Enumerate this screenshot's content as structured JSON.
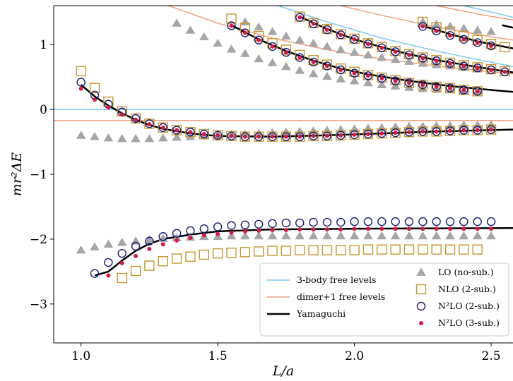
{
  "chart_data": {
    "type": "scatter",
    "xlabel": "L/a",
    "ylabel": "mr²ΔE",
    "xlim": [
      0.9,
      2.58
    ],
    "ylim": [
      -3.6,
      1.6
    ],
    "xticks": [
      1.0,
      1.5,
      2.0,
      2.5
    ],
    "xtick_labels": [
      "1.0",
      "1.5",
      "2.0",
      "2.5"
    ],
    "yticks": [
      -3,
      -2,
      -1,
      0,
      1
    ],
    "ytick_labels": [
      "−3",
      "−2",
      "−1",
      "0",
      "1"
    ],
    "colors": {
      "lo": "#a6a6a6",
      "nlo": "#c8962d",
      "n2lo2": "#1a1a73",
      "n2lo3": "#d01c45",
      "free3": "#7ec8ef",
      "dimer": "#f0a080",
      "yamaguchi": "#000000"
    },
    "legend_left": [
      {
        "label": "3-body free levels",
        "key": "free3"
      },
      {
        "label": "dimer+1 free levels",
        "key": "dimer"
      },
      {
        "label": "Yamaguchi",
        "key": "yamaguchi"
      }
    ],
    "legend_right": [
      {
        "label": "LO (no-sub.)",
        "key": "lo"
      },
      {
        "label": "NLO (2-sub.)",
        "key": "nlo"
      },
      {
        "label": "N²LO (2-sub.)",
        "key": "n2lo2"
      },
      {
        "label": "N²LO (3-sub.)",
        "key": "n2lo3"
      }
    ],
    "series": [
      {
        "key": "lo",
        "marker": "triangle",
        "start": 1.0,
        "step": 0.05,
        "values": [
          -2.17,
          -2.12,
          -2.08,
          -2.05,
          -2.03,
          -2.01,
          -1.99,
          -1.98,
          -1.97,
          -1.96,
          -1.96,
          -1.95,
          -1.95,
          -1.95,
          -1.95,
          -1.95,
          -1.95,
          -1.95,
          -1.95,
          -1.95,
          -1.95,
          -1.95,
          -1.95,
          -1.95,
          -1.95,
          -1.95,
          -1.95,
          -1.95,
          -1.95,
          -1.95,
          -1.95
        ]
      },
      {
        "key": "lo",
        "marker": "triangle",
        "start": 1.0,
        "step": 0.05,
        "values": [
          -0.4,
          -0.42,
          -0.44,
          -0.45,
          -0.45,
          -0.45,
          -0.44,
          -0.43,
          -0.42,
          -0.41,
          -0.4,
          -0.39,
          -0.38,
          -0.37,
          -0.36,
          -0.35,
          -0.34,
          -0.33,
          -0.32,
          -0.31,
          -0.3,
          -0.29,
          -0.28,
          -0.27,
          -0.26,
          -0.26,
          -0.25,
          -0.25,
          -0.24,
          -0.24,
          -0.24
        ]
      },
      {
        "key": "lo",
        "marker": "triangle",
        "start": 1.35,
        "step": 0.05,
        "values": [
          1.33,
          1.22,
          1.12,
          1.02,
          0.93,
          0.86,
          0.78,
          0.72,
          0.66,
          0.6,
          0.55,
          0.51,
          0.47,
          0.44,
          0.41,
          0.38,
          0.36,
          0.34,
          0.32,
          0.31,
          0.3,
          0.29,
          0.28
        ]
      },
      {
        "key": "lo",
        "marker": "triangle",
        "start": 1.6,
        "step": 0.05,
        "values": [
          1.35,
          1.27,
          1.2,
          1.13,
          1.07,
          1.02,
          0.97,
          0.92,
          0.88,
          0.84,
          0.8,
          0.77,
          0.74,
          0.71,
          0.69,
          0.67,
          0.65,
          0.63
        ]
      },
      {
        "key": "lo",
        "marker": "triangle",
        "start": 2.25,
        "step": 0.05,
        "values": [
          1.35,
          1.31,
          1.28,
          1.25,
          1.22,
          1.2
        ]
      },
      {
        "key": "nlo",
        "marker": "square",
        "start": 1.0,
        "step": 0.05,
        "values": [
          0.59,
          0.33,
          0.12,
          -0.03,
          -0.14,
          -0.22,
          -0.28,
          -0.32,
          -0.35,
          -0.38,
          -0.4,
          -0.41,
          -0.42,
          -0.42,
          -0.42,
          -0.42,
          -0.42,
          -0.41,
          -0.41,
          -0.4,
          -0.39,
          -0.38,
          -0.37,
          -0.36,
          -0.35,
          -0.34,
          -0.34,
          -0.33,
          -0.32,
          -0.32,
          -0.31
        ]
      },
      {
        "key": "nlo",
        "marker": "square",
        "start": 1.15,
        "step": 0.05,
        "values": [
          -2.6,
          -2.49,
          -2.41,
          -2.34,
          -2.3,
          -2.27,
          -2.24,
          -2.22,
          -2.21,
          -2.2,
          -2.19,
          -2.18,
          -2.18,
          -2.17,
          -2.17,
          -2.17,
          -2.17,
          -2.17,
          -2.16,
          -2.16,
          -2.16,
          -2.16,
          -2.16,
          -2.16,
          -2.16,
          -2.16,
          -2.16
        ]
      },
      {
        "key": "nlo",
        "marker": "square",
        "start": 1.55,
        "step": 0.05,
        "values": [
          1.4,
          1.26,
          1.13,
          1.02,
          0.92,
          0.84,
          0.76,
          0.69,
          0.63,
          0.58,
          0.53,
          0.49,
          0.45,
          0.41,
          0.38,
          0.35,
          0.33,
          0.3,
          0.28
        ]
      },
      {
        "key": "nlo",
        "marker": "square",
        "start": 1.8,
        "step": 0.05,
        "values": [
          1.43,
          1.33,
          1.24,
          1.16,
          1.09,
          1.02,
          0.96,
          0.9,
          0.85,
          0.8,
          0.76,
          0.72,
          0.68,
          0.65,
          0.62,
          0.59
        ]
      },
      {
        "key": "nlo",
        "marker": "square",
        "start": 2.25,
        "step": 0.05,
        "values": [
          1.35,
          1.27,
          1.2,
          1.13,
          1.07,
          1.01,
          0.96
        ]
      },
      {
        "key": "n2lo2",
        "marker": "circle",
        "start": 1.05,
        "step": 0.05,
        "values": [
          -2.53,
          -2.36,
          -2.22,
          -2.11,
          -2.03,
          -1.96,
          -1.91,
          -1.87,
          -1.84,
          -1.81,
          -1.79,
          -1.78,
          -1.77,
          -1.76,
          -1.75,
          -1.75,
          -1.74,
          -1.74,
          -1.74,
          -1.73,
          -1.73,
          -1.73,
          -1.73,
          -1.73,
          -1.73,
          -1.73,
          -1.73,
          -1.73,
          -1.73,
          -1.73
        ]
      },
      {
        "key": "n2lo2",
        "marker": "circle",
        "start": 1.0,
        "step": 0.05,
        "values": [
          0.42,
          0.22,
          0.08,
          -0.04,
          -0.14,
          -0.22,
          -0.28,
          -0.32,
          -0.35,
          -0.38,
          -0.4,
          -0.41,
          -0.42,
          -0.42,
          -0.42,
          -0.42,
          -0.42,
          -0.41,
          -0.41,
          -0.4,
          -0.39,
          -0.38,
          -0.37,
          -0.36,
          -0.35,
          -0.34,
          -0.34,
          -0.33,
          -0.32,
          -0.32,
          -0.31
        ]
      },
      {
        "key": "n2lo2",
        "marker": "circle",
        "start": 1.55,
        "step": 0.05,
        "values": [
          1.29,
          1.18,
          1.07,
          0.97,
          0.88,
          0.8,
          0.73,
          0.67,
          0.61,
          0.56,
          0.52,
          0.48,
          0.44,
          0.41,
          0.38,
          0.35,
          0.33,
          0.3,
          0.28
        ]
      },
      {
        "key": "n2lo2",
        "marker": "circle",
        "start": 1.8,
        "step": 0.05,
        "values": [
          1.42,
          1.32,
          1.23,
          1.15,
          1.08,
          1.01,
          0.95,
          0.89,
          0.84,
          0.79,
          0.75,
          0.71,
          0.67,
          0.64,
          0.61,
          0.58
        ]
      },
      {
        "key": "n2lo2",
        "marker": "circle",
        "start": 2.25,
        "step": 0.05,
        "values": [
          1.28,
          1.21,
          1.14,
          1.08,
          1.03,
          0.98
        ]
      },
      {
        "key": "n2lo3",
        "marker": "dot",
        "start": 1.0,
        "step": 0.05,
        "values": [
          0.32,
          0.15,
          0.03,
          -0.08,
          -0.16,
          -0.23,
          -0.28,
          -0.32,
          -0.35,
          -0.38,
          -0.4,
          -0.41,
          -0.42,
          -0.42,
          -0.42,
          -0.42,
          -0.42,
          -0.41,
          -0.41,
          -0.4,
          -0.39,
          -0.38,
          -0.37,
          -0.36,
          -0.35,
          -0.34,
          -0.34,
          -0.33,
          -0.32,
          -0.32,
          -0.31
        ]
      },
      {
        "key": "n2lo3",
        "marker": "dot",
        "start": 1.1,
        "step": 0.05,
        "values": [
          -2.56,
          -2.37,
          -2.26,
          -2.15,
          -2.08,
          -2.02,
          -1.98,
          -1.94,
          -1.92,
          -1.9,
          -1.88,
          -1.87,
          -1.86,
          -1.86,
          -1.85,
          -1.85,
          -1.85,
          -1.85,
          -1.84,
          -1.84,
          -1.84,
          -1.84,
          -1.84,
          -1.84,
          -1.84,
          -1.84,
          -1.84,
          -1.84,
          -1.84
        ]
      },
      {
        "key": "n2lo3",
        "marker": "dot",
        "start": 1.55,
        "step": 0.05,
        "values": [
          1.29,
          1.18,
          1.07,
          0.97,
          0.88,
          0.8,
          0.73,
          0.67,
          0.61,
          0.56,
          0.52,
          0.48,
          0.44,
          0.41,
          0.38,
          0.35,
          0.33,
          0.3,
          0.28
        ]
      },
      {
        "key": "n2lo3",
        "marker": "dot",
        "start": 1.8,
        "step": 0.05,
        "values": [
          1.42,
          1.32,
          1.23,
          1.15,
          1.08,
          1.01,
          0.95,
          0.89,
          0.84,
          0.79,
          0.75,
          0.71,
          0.67,
          0.64,
          0.61,
          0.58
        ]
      },
      {
        "key": "n2lo3",
        "marker": "dot",
        "start": 2.25,
        "step": 0.05,
        "values": [
          1.28,
          1.21,
          1.14,
          1.08,
          1.03,
          0.98
        ]
      }
    ],
    "curves": [
      {
        "key": "free3",
        "points": [
          [
            0.9,
            0.0
          ],
          [
            2.58,
            0.0
          ]
        ]
      },
      {
        "key": "free3",
        "points": [
          [
            1.72,
            1.6
          ],
          [
            1.9,
            1.35
          ],
          [
            2.1,
            1.1
          ],
          [
            2.3,
            0.9
          ],
          [
            2.45,
            0.77
          ],
          [
            2.58,
            0.66
          ]
        ]
      },
      {
        "key": "free3",
        "points": [
          [
            2.4,
            1.6
          ],
          [
            2.5,
            1.5
          ],
          [
            2.58,
            1.42
          ]
        ]
      },
      {
        "key": "dimer",
        "points": [
          [
            0.9,
            -0.17
          ],
          [
            2.58,
            -0.17
          ]
        ]
      },
      {
        "key": "dimer",
        "points": [
          [
            1.32,
            1.6
          ],
          [
            1.5,
            1.33
          ],
          [
            1.7,
            1.1
          ],
          [
            1.9,
            0.92
          ],
          [
            2.1,
            0.78
          ],
          [
            2.3,
            0.67
          ],
          [
            2.5,
            0.58
          ],
          [
            2.58,
            0.55
          ]
        ]
      },
      {
        "key": "dimer",
        "points": [
          [
            1.95,
            1.6
          ],
          [
            2.1,
            1.45
          ],
          [
            2.3,
            1.27
          ],
          [
            2.5,
            1.12
          ],
          [
            2.58,
            1.07
          ]
        ]
      },
      {
        "key": "dimer",
        "points": [
          [
            2.3,
            1.6
          ],
          [
            2.45,
            1.47
          ],
          [
            2.58,
            1.38
          ]
        ]
      },
      {
        "key": "yamaguchi",
        "points": [
          [
            1.05,
            -2.56
          ],
          [
            1.1,
            -2.5
          ],
          [
            1.15,
            -2.33
          ],
          [
            1.2,
            -2.18
          ],
          [
            1.25,
            -2.07
          ],
          [
            1.3,
            -2.0
          ],
          [
            1.4,
            -1.93
          ],
          [
            1.5,
            -1.88
          ],
          [
            1.7,
            -1.85
          ],
          [
            2.0,
            -1.84
          ],
          [
            2.58,
            -1.83
          ]
        ]
      },
      {
        "key": "yamaguchi",
        "points": [
          [
            1.0,
            0.38
          ],
          [
            1.05,
            0.2
          ],
          [
            1.1,
            0.06
          ],
          [
            1.15,
            -0.06
          ],
          [
            1.2,
            -0.16
          ],
          [
            1.25,
            -0.24
          ],
          [
            1.3,
            -0.3
          ],
          [
            1.4,
            -0.37
          ],
          [
            1.5,
            -0.41
          ],
          [
            1.7,
            -0.42
          ],
          [
            1.9,
            -0.4
          ],
          [
            2.1,
            -0.37
          ],
          [
            2.3,
            -0.34
          ],
          [
            2.58,
            -0.31
          ]
        ]
      },
      {
        "key": "yamaguchi",
        "points": [
          [
            1.55,
            1.3
          ],
          [
            1.65,
            1.08
          ],
          [
            1.75,
            0.9
          ],
          [
            1.85,
            0.75
          ],
          [
            1.95,
            0.63
          ],
          [
            2.05,
            0.54
          ],
          [
            2.2,
            0.44
          ],
          [
            2.35,
            0.36
          ],
          [
            2.5,
            0.3
          ],
          [
            2.58,
            0.27
          ]
        ]
      },
      {
        "key": "yamaguchi",
        "points": [
          [
            1.8,
            1.43
          ],
          [
            1.9,
            1.24
          ],
          [
            2.0,
            1.08
          ],
          [
            2.1,
            0.96
          ],
          [
            2.2,
            0.85
          ],
          [
            2.3,
            0.76
          ],
          [
            2.4,
            0.69
          ],
          [
            2.5,
            0.62
          ],
          [
            2.58,
            0.57
          ]
        ]
      },
      {
        "key": "yamaguchi",
        "points": [
          [
            2.25,
            1.29
          ],
          [
            2.35,
            1.16
          ],
          [
            2.45,
            1.05
          ],
          [
            2.58,
            0.94
          ]
        ]
      },
      {
        "key": "yamaguchi",
        "points": [
          [
            2.54,
            1.3
          ],
          [
            2.58,
            1.26
          ]
        ]
      }
    ]
  }
}
